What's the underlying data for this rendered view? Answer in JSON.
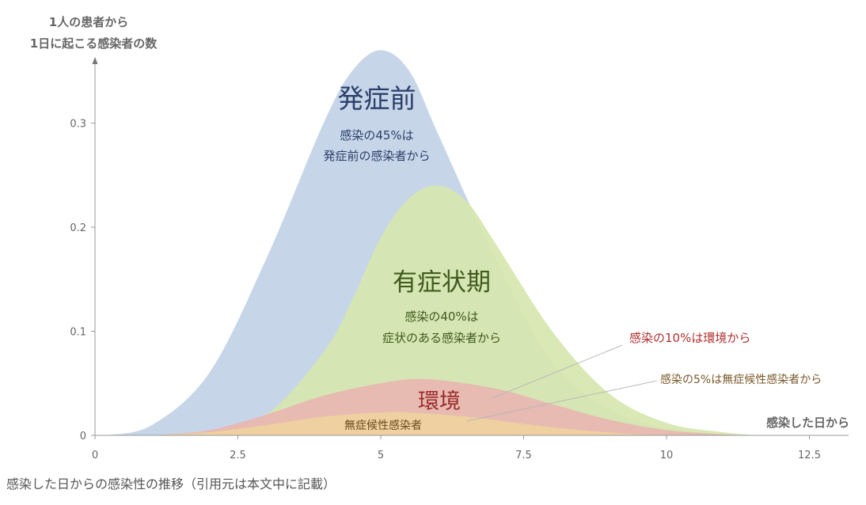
{
  "caption": "感染した日からの感染性の推移（引用元は本文中に記載）",
  "chart_data": {
    "type": "area",
    "ylabel_lines": [
      "1人の患者から",
      "1日に起こる感染者の数"
    ],
    "xlabel": "感染した日から",
    "xlim": [
      0,
      13
    ],
    "ylim": [
      0,
      0.38
    ],
    "x_ticks": [
      "0",
      "2.5",
      "5",
      "7.5",
      "10",
      "12.5"
    ],
    "x_tick_values": [
      0,
      2.5,
      5,
      7.5,
      10,
      12.5
    ],
    "y_ticks": [
      "0",
      "0.1",
      "0.2",
      "0.3"
    ],
    "y_tick_values": [
      0,
      0.1,
      0.2,
      0.3
    ],
    "grid": false,
    "series": [
      {
        "name": "発症前",
        "color": "#c6d6e8",
        "points": [
          [
            0.2,
            0
          ],
          [
            1,
            0.01
          ],
          [
            2,
            0.06
          ],
          [
            3,
            0.17
          ],
          [
            4,
            0.3
          ],
          [
            4.5,
            0.35
          ],
          [
            5,
            0.37
          ],
          [
            5.5,
            0.35
          ],
          [
            6,
            0.29
          ],
          [
            7,
            0.17
          ],
          [
            8,
            0.07
          ],
          [
            9,
            0.025
          ],
          [
            10,
            0.007
          ],
          [
            11,
            0.001
          ],
          [
            11.6,
            0
          ]
        ]
      },
      {
        "name": "有症状期",
        "color": "#d6e6ae",
        "points": [
          [
            1,
            0
          ],
          [
            2,
            0.005
          ],
          [
            3,
            0.02
          ],
          [
            4,
            0.08
          ],
          [
            4.5,
            0.13
          ],
          [
            5,
            0.19
          ],
          [
            5.5,
            0.228
          ],
          [
            6,
            0.24
          ],
          [
            6.5,
            0.225
          ],
          [
            7,
            0.185
          ],
          [
            8,
            0.1
          ],
          [
            9,
            0.04
          ],
          [
            10,
            0.012
          ],
          [
            11,
            0.003
          ],
          [
            11.6,
            0
          ]
        ]
      },
      {
        "name": "環境",
        "color": "#e8b6b2",
        "points": [
          [
            1,
            0
          ],
          [
            2,
            0.005
          ],
          [
            3,
            0.02
          ],
          [
            4,
            0.038
          ],
          [
            5,
            0.05
          ],
          [
            5.8,
            0.054
          ],
          [
            7,
            0.045
          ],
          [
            8,
            0.03
          ],
          [
            9,
            0.015
          ],
          [
            10,
            0.005
          ],
          [
            11,
            0.001
          ],
          [
            11.5,
            0
          ]
        ]
      },
      {
        "name": "無症候性感染者",
        "color": "#efd1a0",
        "points": [
          [
            1,
            0
          ],
          [
            2,
            0.003
          ],
          [
            3,
            0.01
          ],
          [
            4,
            0.018
          ],
          [
            5,
            0.022
          ],
          [
            5.5,
            0.022
          ],
          [
            6.5,
            0.018
          ],
          [
            7.5,
            0.011
          ],
          [
            8.5,
            0.005
          ],
          [
            9.5,
            0.001
          ],
          [
            10,
            0
          ]
        ]
      }
    ],
    "annotations": {
      "presymptomatic_title": "発症前",
      "presymptomatic_line1": "感染の45%は",
      "presymptomatic_line2": "発症前の感染者から",
      "symptomatic_title": "有症状期",
      "symptomatic_line1": "感染の40%は",
      "symptomatic_line2": "症状のある感染者から",
      "environment_title": "環境",
      "environment_note": "感染の10%は環境から",
      "asymptomatic_label": "無症候性感染者",
      "asymptomatic_note": "感染の5%は無症候性感染者から"
    }
  }
}
